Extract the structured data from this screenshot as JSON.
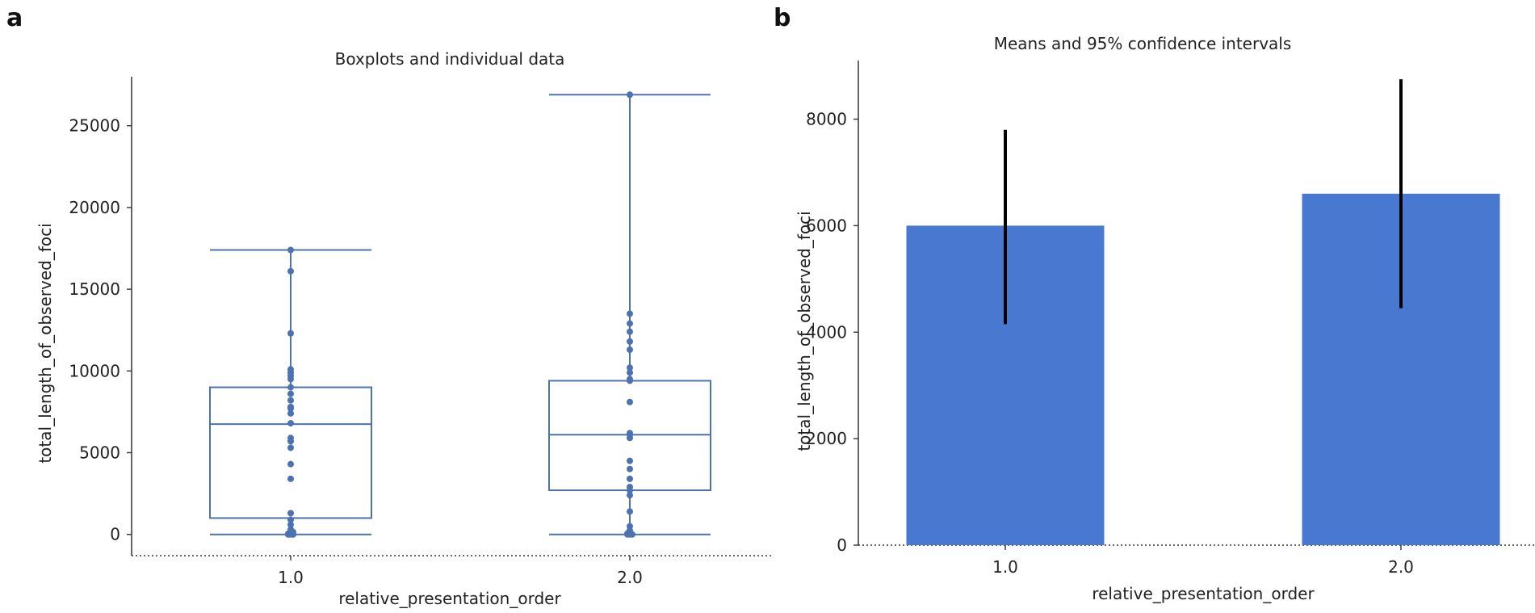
{
  "chart_data": [
    {
      "panel": "a",
      "type": "box",
      "title": "Boxplots and individual data",
      "xlabel": "relative_presentation_order",
      "ylabel": "total_length_of_observed_foci",
      "ylim": [
        -1300,
        28000
      ],
      "yticks": [
        0,
        5000,
        10000,
        15000,
        20000,
        25000
      ],
      "categories": [
        "1.0",
        "2.0"
      ],
      "color": "#4c72b0",
      "boxes": [
        {
          "category": "1.0",
          "whisker_low": 0,
          "q1": 1000,
          "median": 6750,
          "q3": 9000,
          "whisker_high": 17400
        },
        {
          "category": "2.0",
          "whisker_low": 0,
          "q1": 2700,
          "median": 6100,
          "q3": 9400,
          "whisker_high": 26900
        }
      ],
      "points": [
        {
          "category": "1.0",
          "values": [
            0,
            0,
            0,
            0,
            0,
            0,
            50,
            100,
            150,
            300,
            600,
            900,
            1300,
            3400,
            4300,
            5300,
            5700,
            5900,
            6800,
            7400,
            7700,
            7800,
            8200,
            8600,
            9000,
            9500,
            9700,
            9900,
            10100,
            12300,
            16100,
            17400
          ]
        },
        {
          "category": "2.0",
          "values": [
            0,
            0,
            0,
            50,
            100,
            250,
            500,
            1400,
            2400,
            2700,
            2900,
            3400,
            4000,
            4500,
            5900,
            6100,
            6200,
            8100,
            9400,
            9500,
            9900,
            10200,
            11300,
            11800,
            12400,
            12900,
            13500,
            26900
          ]
        }
      ]
    },
    {
      "panel": "b",
      "type": "bar",
      "title": "Means and 95% confidence intervals",
      "xlabel": "relative_presentation_order",
      "ylabel": "total_length_of_observed_foci",
      "ylim": [
        0,
        9100
      ],
      "yticks": [
        0,
        2000,
        4000,
        6000,
        8000
      ],
      "categories": [
        "1.0",
        "2.0"
      ],
      "values": [
        6000,
        6600
      ],
      "ci_low": [
        4150,
        4450
      ],
      "ci_high": [
        7800,
        8750
      ],
      "color": "#4878d0",
      "error_color": "#000000"
    }
  ]
}
